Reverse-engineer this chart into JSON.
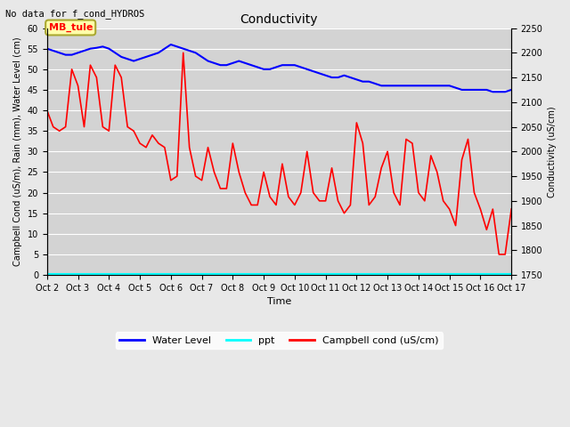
{
  "title": "Conductivity",
  "top_left_text": "No data for f_cond_HYDROS",
  "annotation_box": "MB_tule",
  "xlabel": "Time",
  "ylabel_left": "Campbell Cond (uS/m), Rain (mm), Water Level (cm)",
  "ylabel_right": "Conductivity (uS/cm)",
  "ylim_left": [
    0,
    60
  ],
  "ylim_right": [
    1750,
    2250
  ],
  "yticks_left": [
    0,
    5,
    10,
    15,
    20,
    25,
    30,
    35,
    40,
    45,
    50,
    55,
    60
  ],
  "yticks_right": [
    1750,
    1800,
    1850,
    1900,
    1950,
    2000,
    2050,
    2100,
    2150,
    2200,
    2250
  ],
  "xtick_labels": [
    "Oct 2",
    "Oct 3",
    "Oct 4",
    "Oct 5",
    "Oct 6",
    "Oct 7",
    "Oct 8",
    "Oct 9",
    "Oct 10",
    "Oct 11",
    "Oct 12",
    "Oct 13",
    "Oct 14",
    "Oct 15",
    "Oct 16",
    "Oct 17"
  ],
  "fig_bg_color": "#e8e8e8",
  "plot_bg_color": "#d3d3d3",
  "water_level_x": [
    0,
    0.2,
    0.4,
    0.6,
    0.8,
    1.0,
    1.2,
    1.4,
    1.6,
    1.8,
    2.0,
    2.2,
    2.4,
    2.6,
    2.8,
    3.0,
    3.2,
    3.4,
    3.6,
    3.8,
    4.0,
    4.2,
    4.4,
    4.6,
    4.8,
    5.0,
    5.2,
    5.4,
    5.6,
    5.8,
    6.0,
    6.2,
    6.4,
    6.6,
    6.8,
    7.0,
    7.2,
    7.4,
    7.6,
    7.8,
    8.0,
    8.2,
    8.4,
    8.6,
    8.8,
    9.0,
    9.2,
    9.4,
    9.6,
    9.8,
    10.0,
    10.2,
    10.4,
    10.6,
    10.8,
    11.0,
    11.2,
    11.4,
    11.6,
    11.8,
    12.0,
    12.2,
    12.4,
    12.6,
    12.8,
    13.0,
    13.2,
    13.4,
    13.6,
    13.8,
    14.0,
    14.2,
    14.4,
    14.6,
    14.8,
    15.0
  ],
  "water_level_y": [
    55,
    54.5,
    54,
    53.5,
    53.5,
    54,
    54.5,
    55,
    55.2,
    55.5,
    55,
    54,
    53,
    52.5,
    52,
    52.5,
    53,
    53.5,
    54,
    55,
    56,
    55.5,
    55,
    54.5,
    54,
    53,
    52,
    51.5,
    51,
    51,
    51.5,
    52,
    51.5,
    51,
    50.5,
    50,
    50,
    50.5,
    51,
    51,
    51,
    50.5,
    50,
    49.5,
    49,
    48.5,
    48,
    48,
    48.5,
    48,
    47.5,
    47,
    47,
    46.5,
    46,
    46,
    46,
    46,
    46,
    46,
    46,
    46,
    46,
    46,
    46,
    46,
    45.5,
    45,
    45,
    45,
    45,
    45,
    44.5,
    44.5,
    44.5,
    45
  ],
  "campbell_x": [
    0,
    0.2,
    0.4,
    0.6,
    0.8,
    1.0,
    1.2,
    1.4,
    1.6,
    1.8,
    2.0,
    2.2,
    2.4,
    2.6,
    2.8,
    3.0,
    3.2,
    3.4,
    3.6,
    3.8,
    4.0,
    4.2,
    4.4,
    4.6,
    4.8,
    5.0,
    5.2,
    5.4,
    5.6,
    5.8,
    6.0,
    6.2,
    6.4,
    6.6,
    6.8,
    7.0,
    7.2,
    7.4,
    7.6,
    7.8,
    8.0,
    8.2,
    8.4,
    8.6,
    8.8,
    9.0,
    9.2,
    9.4,
    9.6,
    9.8,
    10.0,
    10.2,
    10.4,
    10.6,
    10.8,
    11.0,
    11.2,
    11.4,
    11.6,
    11.8,
    12.0,
    12.2,
    12.4,
    12.6,
    12.8,
    13.0,
    13.2,
    13.4,
    13.6,
    13.8,
    14.0,
    14.2,
    14.4,
    14.6,
    14.8,
    15.0
  ],
  "campbell_y": [
    40,
    36,
    35,
    36,
    50,
    46,
    36,
    51,
    48,
    36,
    35,
    51,
    48,
    36,
    35,
    32,
    31,
    34,
    32,
    31,
    23,
    24,
    54,
    31,
    24,
    23,
    31,
    25,
    21,
    21,
    32,
    25,
    20,
    17,
    17,
    25,
    19,
    17,
    27,
    19,
    17,
    20,
    30,
    20,
    18,
    18,
    26,
    18,
    15,
    17,
    37,
    32,
    17,
    19,
    26,
    30,
    20,
    17,
    33,
    32,
    20,
    18,
    29,
    25,
    18,
    16,
    12,
    28,
    33,
    20,
    16,
    11,
    16,
    5,
    5,
    16
  ]
}
